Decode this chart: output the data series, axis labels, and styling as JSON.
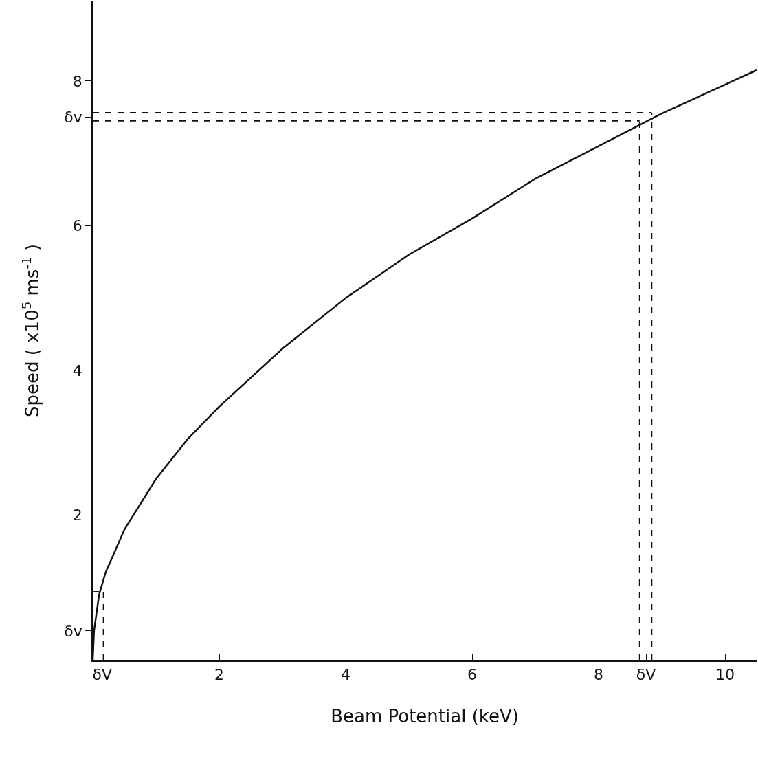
{
  "chart_data": {
    "type": "line",
    "xlabel": "Beam Potential (keV)",
    "ylabel": "Speed ( x10$^{5}$ ms$^{-1}$ )",
    "xlim": [
      0,
      10.5
    ],
    "ylim": [
      0,
      9.1
    ],
    "xticks": [
      {
        "value": 0.15,
        "label": "δV"
      },
      2,
      4,
      6,
      8,
      {
        "value": 8.75,
        "label": "δV"
      },
      10
    ],
    "yticks": [
      {
        "value": 0.4,
        "label": "δv"
      },
      2,
      4,
      6,
      {
        "value": 7.5,
        "label": "δv"
      },
      8
    ],
    "grid": false,
    "marker": "none",
    "series": [
      {
        "color": "#111111",
        "line_style": "solid",
        "x": [
          0,
          0.02,
          0.1,
          0.2,
          0.5,
          1,
          1.5,
          2,
          3,
          4,
          5,
          6,
          7,
          8,
          9,
          10,
          10.5
        ],
        "values": [
          0,
          0.4,
          0.9,
          1.2,
          1.8,
          2.5,
          3.05,
          3.5,
          4.3,
          5.0,
          5.6,
          6.1,
          6.65,
          7.1,
          7.55,
          7.95,
          8.15
        ]
      },
      {
        "color": "#111111",
        "line_style": "dashed",
        "x": [
          0.17,
          0.17
        ],
        "values": [
          0,
          0.94
        ]
      },
      {
        "color": "#111111",
        "line_style": "dashed",
        "x": [
          0,
          0.17
        ],
        "values": [
          0.94,
          0.94
        ]
      },
      {
        "color": "#111111",
        "line_style": "dashed",
        "x": [
          8.65,
          8.65
        ],
        "values": [
          0,
          7.45
        ]
      },
      {
        "color": "#111111",
        "line_style": "dashed",
        "x": [
          8.84,
          8.84
        ],
        "values": [
          0,
          7.56
        ]
      },
      {
        "color": "#111111",
        "line_style": "dashed",
        "x": [
          0,
          8.65
        ],
        "values": [
          7.45,
          7.45
        ]
      },
      {
        "color": "#111111",
        "line_style": "dashed",
        "x": [
          0,
          8.84
        ],
        "values": [
          7.56,
          7.56
        ]
      }
    ]
  }
}
